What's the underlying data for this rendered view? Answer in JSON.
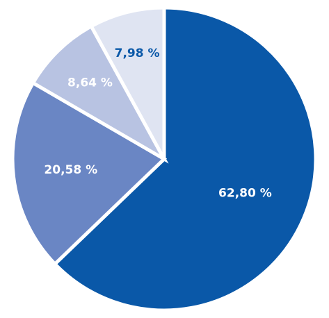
{
  "chart_data": {
    "type": "pie",
    "title": "",
    "slices": [
      {
        "label": "62,80 %",
        "value": 62.8,
        "color": "#0a58a8",
        "label_color": "#ffffff"
      },
      {
        "label": "20,58 %",
        "value": 20.58,
        "color": "#6a86c4",
        "label_color": "#ffffff"
      },
      {
        "label": "8,64 %",
        "value": 8.64,
        "color": "#b8c3e2",
        "label_color": "#ffffff"
      },
      {
        "label": "7,98 %",
        "value": 7.98,
        "color": "#dfe4f2",
        "label_color": "#0a58a8"
      }
    ],
    "start": "12 o'clock",
    "direction": "clockwise",
    "slice_separator_color": "#ffffff",
    "legend": "none"
  }
}
